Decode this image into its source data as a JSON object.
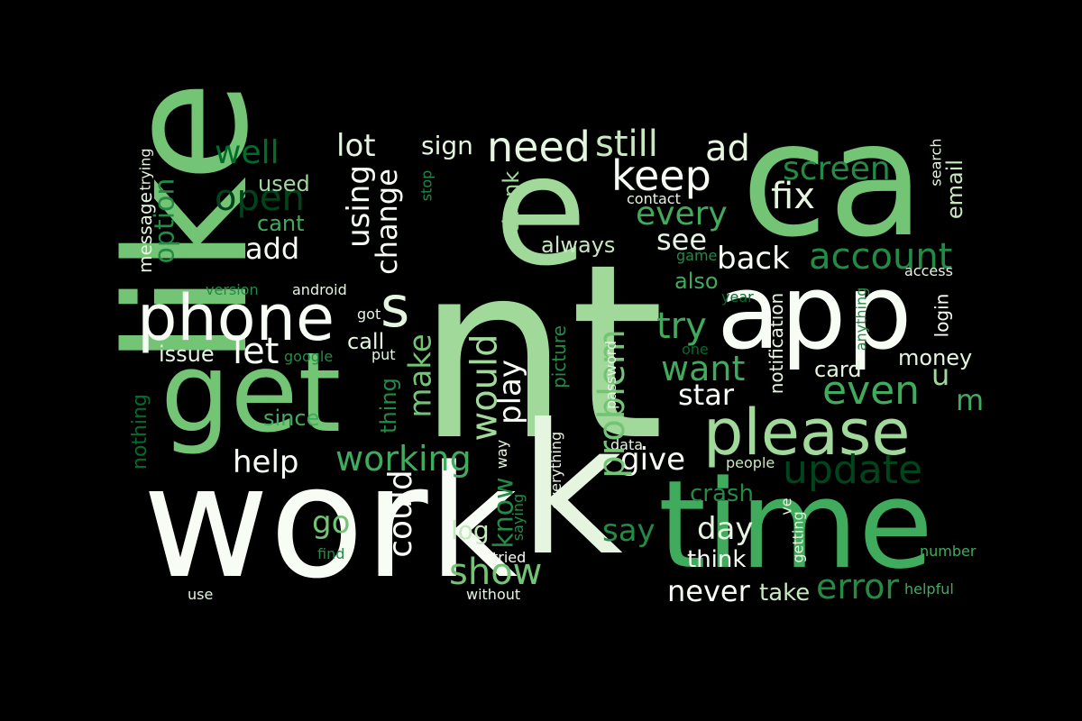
{
  "background": "#000000",
  "palette": {
    "lightest": "#f7fcf5",
    "light": "#e5f5e0",
    "pale": "#c7e9c0",
    "soft": "#a1d99b",
    "mid": "#74c476",
    "medium": "#41ab5d",
    "dark": "#238b45",
    "darker": "#006d2c",
    "darkest": "#00441b"
  },
  "words": [
    {
      "text": "nt",
      "color": "#a1d99b"
    },
    {
      "text": "like",
      "color": "#74c476"
    },
    {
      "text": "ca",
      "color": "#74c476"
    },
    {
      "text": "work",
      "color": "#f7fcf5"
    },
    {
      "text": "time",
      "color": "#41ab5d"
    },
    {
      "text": "get",
      "color": "#74c476"
    },
    {
      "text": "app",
      "color": "#f7fcf5"
    },
    {
      "text": "k",
      "color": "#e5f5e0"
    },
    {
      "text": "e",
      "color": "#a1d99b"
    },
    {
      "text": "phone",
      "color": "#f7fcf5"
    },
    {
      "text": "please",
      "color": "#a1d99b"
    },
    {
      "text": "s",
      "color": "#e5f5e0"
    },
    {
      "text": "update",
      "color": "#00441b"
    },
    {
      "text": "need",
      "color": "#e5f5e0"
    },
    {
      "text": "still",
      "color": "#c7e9c0"
    },
    {
      "text": "ad",
      "color": "#e5f5e0"
    },
    {
      "text": "keep",
      "color": "#f7fcf5"
    },
    {
      "text": "fix",
      "color": "#e5f5e0"
    },
    {
      "text": "screen",
      "color": "#238b45"
    },
    {
      "text": "well",
      "color": "#006d2c"
    },
    {
      "text": "lot",
      "color": "#e5f5e0"
    },
    {
      "text": "sign",
      "color": "#e5f5e0"
    },
    {
      "text": "account",
      "color": "#238b45"
    },
    {
      "text": "back",
      "color": "#f7fcf5"
    },
    {
      "text": "every",
      "color": "#41ab5d"
    },
    {
      "text": "see",
      "color": "#e5f5e0"
    },
    {
      "text": "open",
      "color": "#00441b"
    },
    {
      "text": "used",
      "color": "#a1d99b"
    },
    {
      "text": "cant",
      "color": "#41ab5d"
    },
    {
      "text": "add",
      "color": "#f7fcf5"
    },
    {
      "text": "always",
      "color": "#c7e9c0"
    },
    {
      "text": "thank",
      "color": "#a1d99b"
    },
    {
      "text": "contact",
      "color": "#e5f5e0"
    },
    {
      "text": "also",
      "color": "#41ab5d"
    },
    {
      "text": "try",
      "color": "#41ab5d"
    },
    {
      "text": "want",
      "color": "#41ab5d"
    },
    {
      "text": "star",
      "color": "#f7fcf5"
    },
    {
      "text": "even",
      "color": "#41ab5d"
    },
    {
      "text": "card",
      "color": "#e5f5e0"
    },
    {
      "text": "money",
      "color": "#e5f5e0"
    },
    {
      "text": "issue",
      "color": "#e5f5e0"
    },
    {
      "text": "let",
      "color": "#f7fcf5"
    },
    {
      "text": "call",
      "color": "#e5f5e0"
    },
    {
      "text": "since",
      "color": "#41ab5d"
    },
    {
      "text": "help",
      "color": "#f7fcf5"
    },
    {
      "text": "working",
      "color": "#41ab5d"
    },
    {
      "text": "give",
      "color": "#f7fcf5"
    },
    {
      "text": "crash",
      "color": "#238b45"
    },
    {
      "text": "day",
      "color": "#e5f5e0"
    },
    {
      "text": "say",
      "color": "#238b45"
    },
    {
      "text": "go",
      "color": "#74c476"
    },
    {
      "text": "log",
      "color": "#c7e9c0"
    },
    {
      "text": "show",
      "color": "#74c476"
    },
    {
      "text": "think",
      "color": "#f7fcf5"
    },
    {
      "text": "never",
      "color": "#f7fcf5"
    },
    {
      "text": "take",
      "color": "#c7e9c0"
    },
    {
      "text": "error",
      "color": "#238b45"
    },
    {
      "text": "helpful",
      "color": "#41ab5d"
    },
    {
      "text": "number",
      "color": "#41ab5d"
    },
    {
      "text": "people",
      "color": "#c7e9c0"
    },
    {
      "text": "data",
      "color": "#e5f5e0"
    },
    {
      "text": "version",
      "color": "#238b45"
    },
    {
      "text": "android",
      "color": "#e5f5e0"
    },
    {
      "text": "got",
      "color": "#e5f5e0"
    },
    {
      "text": "put",
      "color": "#e5f5e0"
    },
    {
      "text": "google",
      "color": "#238b45"
    },
    {
      "text": "game",
      "color": "#238b45"
    },
    {
      "text": "year",
      "color": "#006d2c"
    },
    {
      "text": "one",
      "color": "#006d2c"
    },
    {
      "text": "find",
      "color": "#238b45"
    },
    {
      "text": "use",
      "color": "#e5f5e0"
    },
    {
      "text": "without",
      "color": "#e5f5e0"
    },
    {
      "text": "tried",
      "color": "#f7fcf5"
    },
    {
      "text": "access",
      "color": "#e5f5e0"
    },
    {
      "text": "u",
      "color": "#a1d99b"
    },
    {
      "text": "m",
      "color": "#41ab5d"
    },
    {
      "text": "message",
      "color": "#e5f5e0"
    },
    {
      "text": "trying",
      "color": "#e5f5e0"
    },
    {
      "text": "option",
      "color": "#238b45"
    },
    {
      "text": "using",
      "color": "#f7fcf5"
    },
    {
      "text": "change",
      "color": "#f7fcf5"
    },
    {
      "text": "stop",
      "color": "#238b45"
    },
    {
      "text": "nothing",
      "color": "#006d2c"
    },
    {
      "text": "thing",
      "color": "#238b45"
    },
    {
      "text": "make",
      "color": "#74c476"
    },
    {
      "text": "would",
      "color": "#a1d99b"
    },
    {
      "text": "play",
      "color": "#f7fcf5"
    },
    {
      "text": "could",
      "color": "#f7fcf5"
    },
    {
      "text": "know",
      "color": "#238b45"
    },
    {
      "text": "problem",
      "color": "#74c476"
    },
    {
      "text": "picture",
      "color": "#238b45"
    },
    {
      "text": "password",
      "color": "#e5f5e0"
    },
    {
      "text": "everything",
      "color": "#e5f5e0"
    },
    {
      "text": "saying",
      "color": "#238b45"
    },
    {
      "text": "way",
      "color": "#e5f5e0"
    },
    {
      "text": "ve",
      "color": "#e5f5e0"
    },
    {
      "text": "getting",
      "color": "#e5f5e0"
    },
    {
      "text": "notification",
      "color": "#e5f5e0"
    },
    {
      "text": "anything",
      "color": "#238b45"
    },
    {
      "text": "login",
      "color": "#f7fcf5"
    },
    {
      "text": "email",
      "color": "#c7e9c0"
    },
    {
      "text": "search",
      "color": "#e5f5e0"
    }
  ]
}
